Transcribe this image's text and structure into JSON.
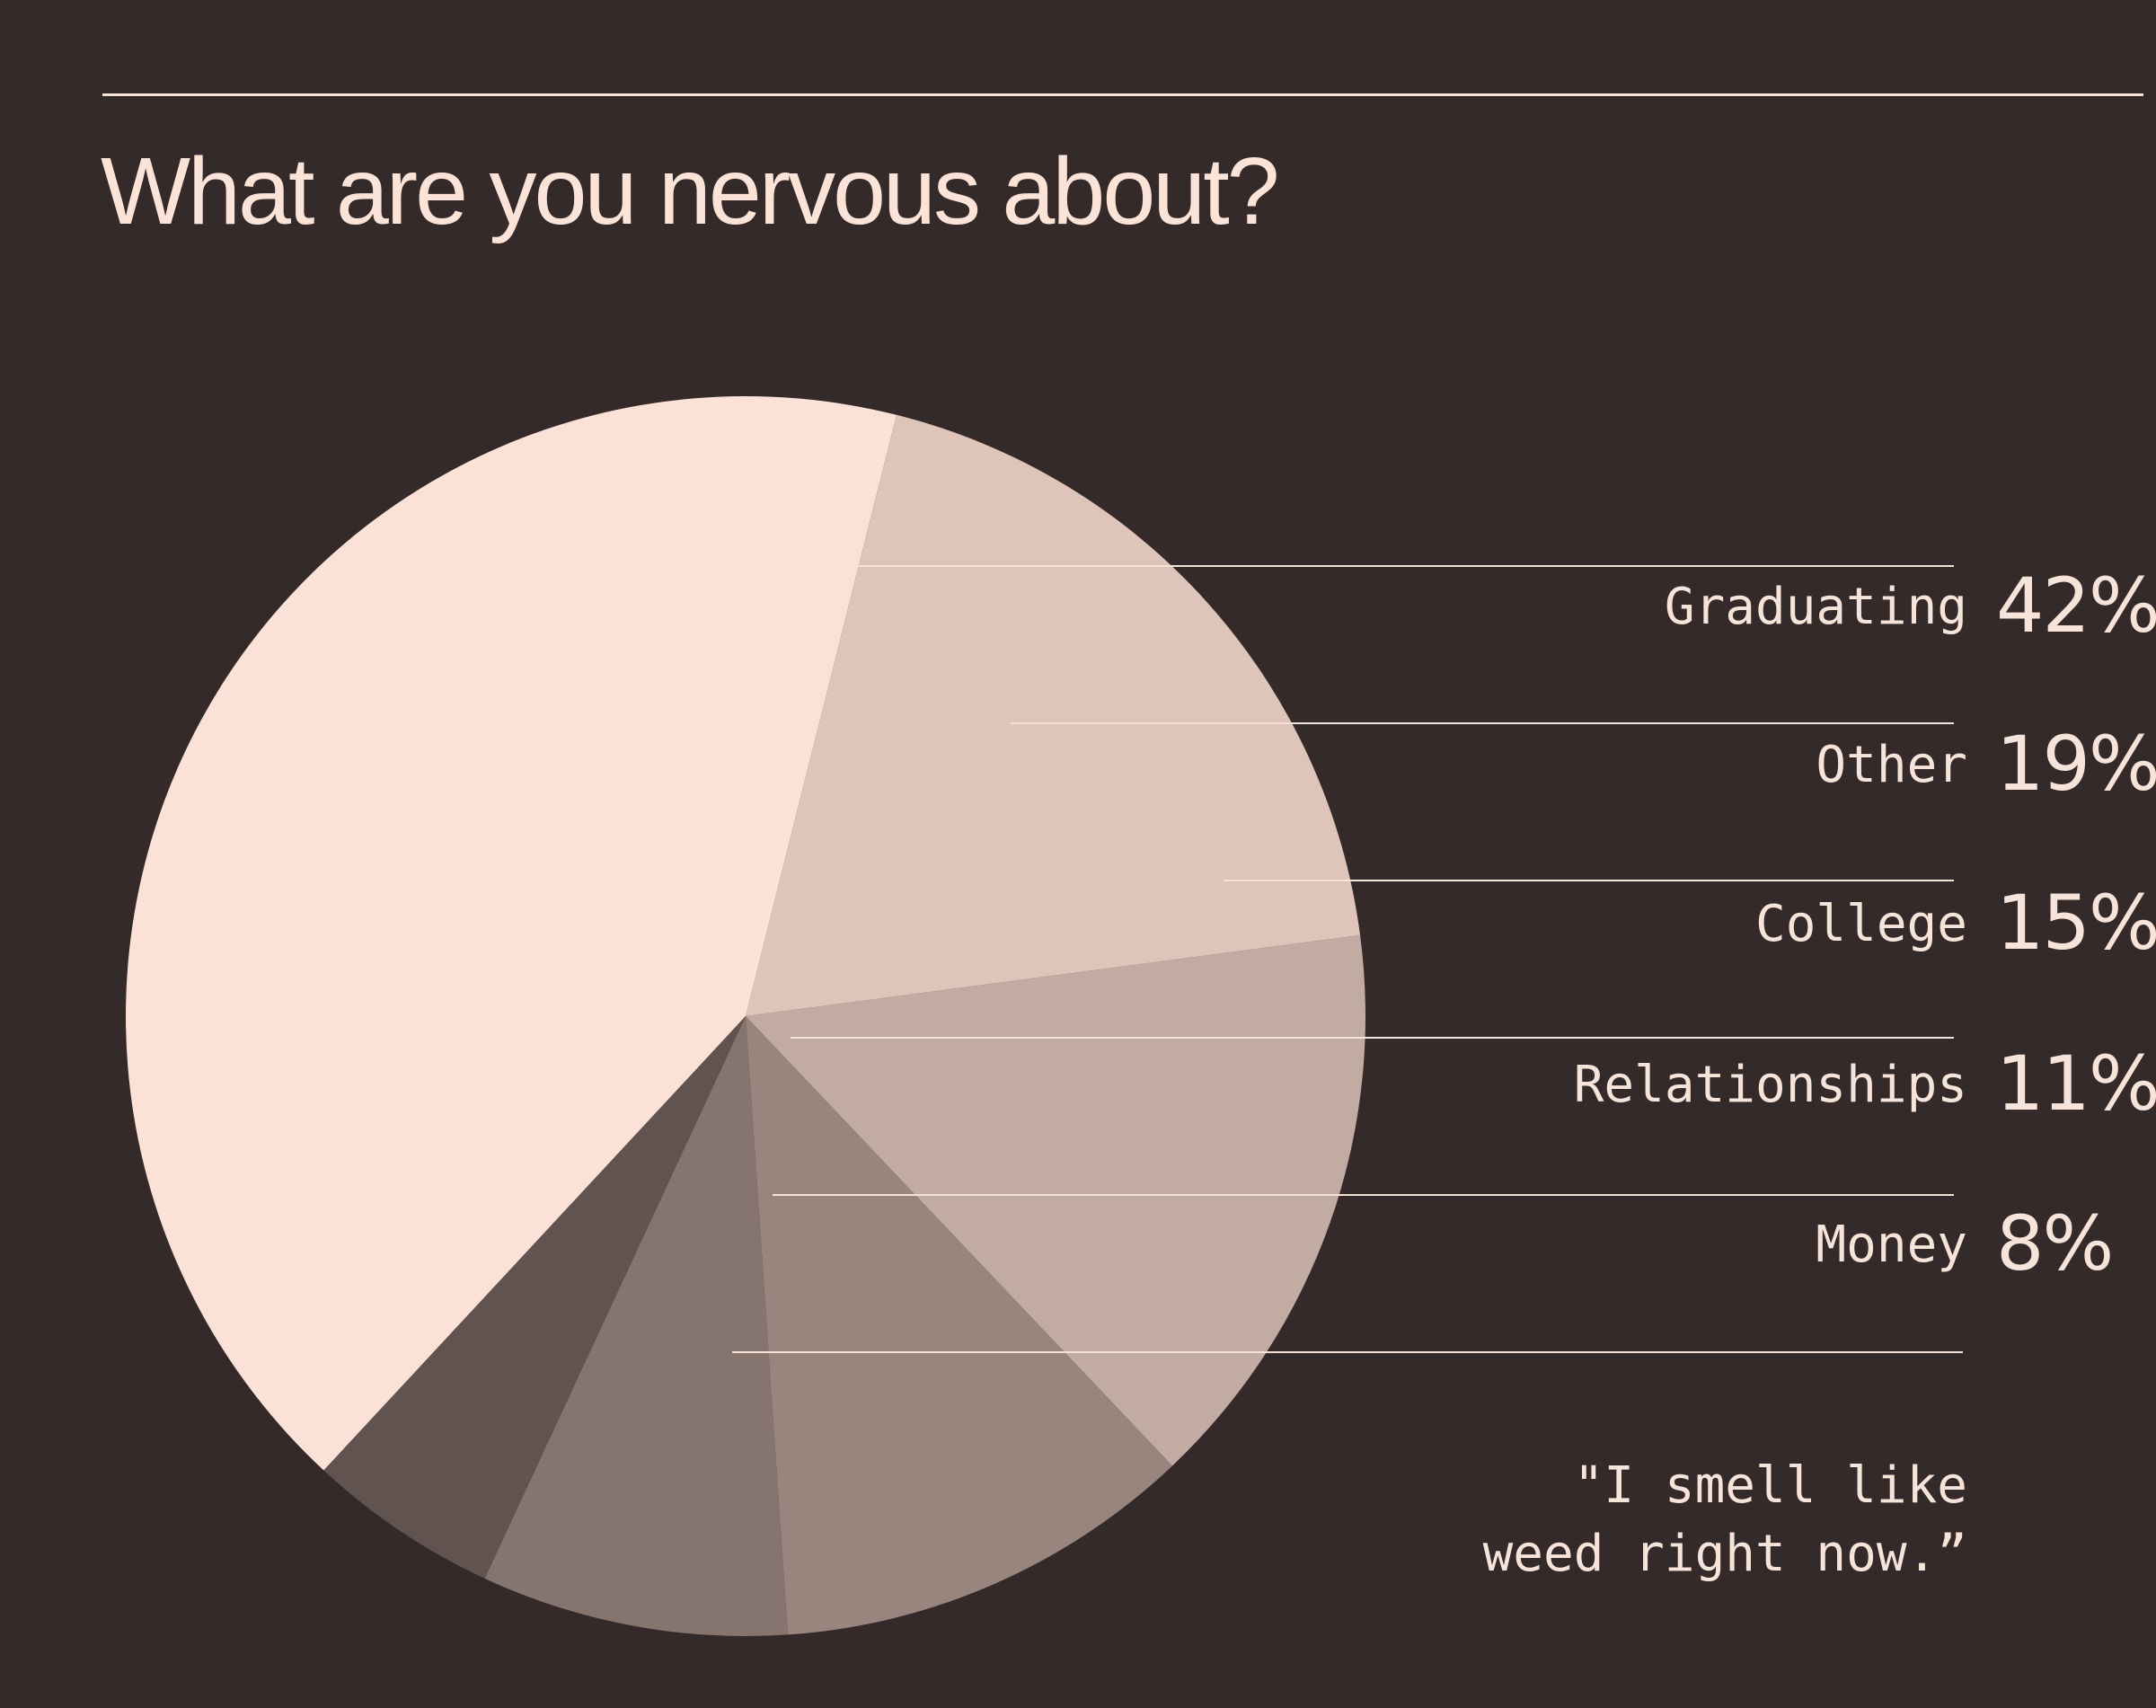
{
  "title": "What are you nervous about?",
  "chart_data": {
    "type": "pie",
    "title": "What are you nervous about?",
    "slices": [
      {
        "label": "Graduating",
        "value": 42,
        "display": "42%",
        "color": "#fbe1d6"
      },
      {
        "label": "Other",
        "value": 19,
        "display": "19%",
        "color": "#dfc4ba"
      },
      {
        "label": "College",
        "value": 15,
        "display": "15%",
        "color": "#c2aba3"
      },
      {
        "label": "Relationships",
        "value": 11,
        "display": "11%",
        "color": "#97857e"
      },
      {
        "label": "Money",
        "value": 8,
        "display": "8%",
        "color": "#85756e"
      },
      {
        "label": "\"I smell like weed right now.”",
        "value": 5,
        "display": "",
        "color": "#615350"
      }
    ],
    "legend": "right, leader lines"
  },
  "colors": {
    "background": "#342a29",
    "text": "#f6e4da",
    "rule": "#f5e3d8"
  }
}
